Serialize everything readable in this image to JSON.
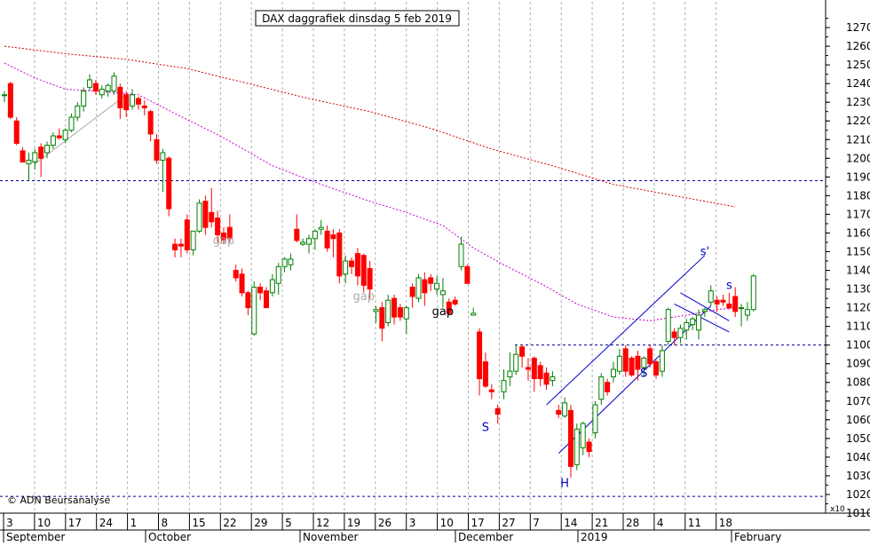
{
  "chart_data": {
    "type": "candlestick",
    "title": "DAX daggrafiek dinsdag 5 feb 2019",
    "copyright": "© ADN Beursanalyse",
    "ylim": [
      1010,
      1280
    ],
    "y_ticks": [
      1010,
      1020,
      1030,
      1040,
      1050,
      1060,
      1070,
      1080,
      1090,
      1100,
      1110,
      1120,
      1130,
      1140,
      1150,
      1160,
      1170,
      1180,
      1190,
      1200,
      1210,
      1220,
      1230,
      1240,
      1250,
      1260,
      1270
    ],
    "y_scale_label": "x10",
    "grid": true,
    "x_tick_labels": [
      "3",
      "10",
      "17",
      "24",
      "1",
      "8",
      "15",
      "22",
      "29",
      "5",
      "12",
      "19",
      "26",
      "3",
      "10",
      "17",
      "27",
      "7",
      "14",
      "21",
      "28",
      "4",
      "11",
      "18"
    ],
    "month_labels": [
      "September",
      "October",
      "November",
      "December",
      "2019",
      "February"
    ],
    "horizontal_lines": [
      1188,
      1100,
      1019
    ],
    "annotations": [
      {
        "text": "gap",
        "color": "#aaaaaa",
        "x_day": 36,
        "y": 1154
      },
      {
        "text": "gap",
        "color": "#aaaaaa",
        "x_day": 59,
        "y": 1124
      },
      {
        "text": "gap",
        "color": "#000000",
        "x_day": 72,
        "y": 1116
      },
      {
        "text": "S",
        "color": "#0000cc",
        "x_day": 79,
        "y": 1054
      },
      {
        "text": "H",
        "color": "#0000cc",
        "x_day": 92,
        "y": 1024
      },
      {
        "text": "S",
        "color": "#0000cc",
        "x_day": 105,
        "y": 1083
      },
      {
        "text": "s'",
        "color": "#0000cc",
        "x_day": 115,
        "y": 1148
      },
      {
        "text": "s",
        "color": "#0000cc",
        "x_day": 119,
        "y": 1130
      }
    ],
    "ma_slow": [
      [
        0,
        1260
      ],
      [
        10,
        1256
      ],
      [
        20,
        1253
      ],
      [
        30,
        1248
      ],
      [
        40,
        1240
      ],
      [
        50,
        1232
      ],
      [
        60,
        1225
      ],
      [
        70,
        1216
      ],
      [
        80,
        1205
      ],
      [
        90,
        1196
      ],
      [
        100,
        1186
      ],
      [
        110,
        1180
      ],
      [
        120,
        1174
      ]
    ],
    "ma_fast": [
      [
        0,
        1251
      ],
      [
        5,
        1243
      ],
      [
        10,
        1237
      ],
      [
        15,
        1236
      ],
      [
        22,
        1234
      ],
      [
        28,
        1224
      ],
      [
        36,
        1211
      ],
      [
        44,
        1196
      ],
      [
        52,
        1186
      ],
      [
        60,
        1177
      ],
      [
        66,
        1171
      ],
      [
        72,
        1164
      ],
      [
        77,
        1152
      ],
      [
        82,
        1143
      ],
      [
        88,
        1133
      ],
      [
        94,
        1122
      ],
      [
        100,
        1115
      ],
      [
        106,
        1113
      ],
      [
        112,
        1116
      ],
      [
        117,
        1119
      ],
      [
        120,
        1120
      ]
    ],
    "channel_lines": [
      [
        89,
        1068,
        115,
        1148
      ],
      [
        91,
        1042,
        116,
        1121
      ],
      [
        111,
        1128,
        119,
        1113
      ],
      [
        110,
        1122,
        119,
        1107
      ],
      [
        5,
        1197,
        20,
        1234
      ]
    ],
    "candles": [
      {
        "o": 1234,
        "h": 1236,
        "l": 1230,
        "c": 1234
      },
      {
        "o": 1240,
        "h": 1241,
        "l": 1221,
        "c": 1222
      },
      {
        "o": 1220,
        "h": 1222,
        "l": 1207,
        "c": 1208
      },
      {
        "o": 1204,
        "h": 1206,
        "l": 1198,
        "c": 1198
      },
      {
        "o": 1197,
        "h": 1203,
        "l": 1188,
        "c": 1199
      },
      {
        "o": 1198,
        "h": 1205,
        "l": 1194,
        "c": 1203
      },
      {
        "o": 1206,
        "h": 1208,
        "l": 1190,
        "c": 1200
      },
      {
        "o": 1203,
        "h": 1209,
        "l": 1200,
        "c": 1207
      },
      {
        "o": 1207,
        "h": 1214,
        "l": 1205,
        "c": 1212
      },
      {
        "o": 1212,
        "h": 1216,
        "l": 1210,
        "c": 1211
      },
      {
        "o": 1210,
        "h": 1216,
        "l": 1208,
        "c": 1215
      },
      {
        "o": 1215,
        "h": 1224,
        "l": 1214,
        "c": 1222
      },
      {
        "o": 1222,
        "h": 1230,
        "l": 1220,
        "c": 1228
      },
      {
        "o": 1228,
        "h": 1238,
        "l": 1225,
        "c": 1236
      },
      {
        "o": 1238,
        "h": 1245,
        "l": 1236,
        "c": 1242
      },
      {
        "o": 1240,
        "h": 1242,
        "l": 1234,
        "c": 1236
      },
      {
        "o": 1234,
        "h": 1239,
        "l": 1232,
        "c": 1237
      },
      {
        "o": 1236,
        "h": 1240,
        "l": 1233,
        "c": 1239
      },
      {
        "o": 1236,
        "h": 1246,
        "l": 1234,
        "c": 1244
      },
      {
        "o": 1238,
        "h": 1240,
        "l": 1221,
        "c": 1227
      },
      {
        "o": 1234,
        "h": 1236,
        "l": 1222,
        "c": 1226
      },
      {
        "o": 1228,
        "h": 1237,
        "l": 1226,
        "c": 1234
      },
      {
        "o": 1232,
        "h": 1233,
        "l": 1226,
        "c": 1229
      },
      {
        "o": 1228,
        "h": 1231,
        "l": 1223,
        "c": 1227
      },
      {
        "o": 1225,
        "h": 1226,
        "l": 1209,
        "c": 1213
      },
      {
        "o": 1210,
        "h": 1213,
        "l": 1197,
        "c": 1199
      },
      {
        "o": 1199,
        "h": 1205,
        "l": 1182,
        "c": 1203
      },
      {
        "o": 1200,
        "h": 1201,
        "l": 1169,
        "c": 1173
      },
      {
        "o": 1154,
        "h": 1157,
        "l": 1147,
        "c": 1151
      },
      {
        "o": 1154,
        "h": 1157,
        "l": 1147,
        "c": 1153
      },
      {
        "o": 1167,
        "h": 1170,
        "l": 1149,
        "c": 1151
      },
      {
        "o": 1151,
        "h": 1161,
        "l": 1148,
        "c": 1161
      },
      {
        "o": 1161,
        "h": 1178,
        "l": 1160,
        "c": 1176
      },
      {
        "o": 1177,
        "h": 1180,
        "l": 1159,
        "c": 1163
      },
      {
        "o": 1171,
        "h": 1184,
        "l": 1163,
        "c": 1166
      },
      {
        "o": 1168,
        "h": 1172,
        "l": 1155,
        "c": 1159
      },
      {
        "o": 1160,
        "h": 1163,
        "l": 1154,
        "c": 1156
      },
      {
        "o": 1163,
        "h": 1170,
        "l": 1155,
        "c": 1157
      },
      {
        "o": 1140,
        "h": 1143,
        "l": 1134,
        "c": 1136
      },
      {
        "o": 1138,
        "h": 1141,
        "l": 1126,
        "c": 1128
      },
      {
        "o": 1128,
        "h": 1129,
        "l": 1116,
        "c": 1120
      },
      {
        "o": 1106,
        "h": 1134,
        "l": 1105,
        "c": 1131
      },
      {
        "o": 1131,
        "h": 1133,
        "l": 1124,
        "c": 1128
      },
      {
        "o": 1129,
        "h": 1131,
        "l": 1120,
        "c": 1120
      },
      {
        "o": 1128,
        "h": 1138,
        "l": 1126,
        "c": 1135
      },
      {
        "o": 1133,
        "h": 1144,
        "l": 1127,
        "c": 1142
      },
      {
        "o": 1142,
        "h": 1147,
        "l": 1139,
        "c": 1146
      },
      {
        "o": 1143,
        "h": 1149,
        "l": 1140,
        "c": 1146
      },
      {
        "o": 1162,
        "h": 1170,
        "l": 1155,
        "c": 1156
      },
      {
        "o": 1154,
        "h": 1157,
        "l": 1153,
        "c": 1155
      },
      {
        "o": 1154,
        "h": 1159,
        "l": 1149,
        "c": 1157
      },
      {
        "o": 1157,
        "h": 1162,
        "l": 1151,
        "c": 1161
      },
      {
        "o": 1162,
        "h": 1167,
        "l": 1159,
        "c": 1163
      },
      {
        "o": 1161,
        "h": 1164,
        "l": 1150,
        "c": 1152
      },
      {
        "o": 1159,
        "h": 1162,
        "l": 1147,
        "c": 1157
      },
      {
        "o": 1160,
        "h": 1162,
        "l": 1133,
        "c": 1137
      },
      {
        "o": 1138,
        "h": 1148,
        "l": 1133,
        "c": 1145
      },
      {
        "o": 1145,
        "h": 1147,
        "l": 1138,
        "c": 1142
      },
      {
        "o": 1149,
        "h": 1152,
        "l": 1132,
        "c": 1137
      },
      {
        "o": 1148,
        "h": 1149,
        "l": 1128,
        "c": 1132
      },
      {
        "o": 1141,
        "h": 1145,
        "l": 1125,
        "c": 1130
      },
      {
        "o": 1118,
        "h": 1121,
        "l": 1112,
        "c": 1119
      },
      {
        "o": 1120,
        "h": 1123,
        "l": 1102,
        "c": 1109
      },
      {
        "o": 1112,
        "h": 1127,
        "l": 1110,
        "c": 1124
      },
      {
        "o": 1125,
        "h": 1127,
        "l": 1111,
        "c": 1115
      },
      {
        "o": 1120,
        "h": 1122,
        "l": 1113,
        "c": 1115
      },
      {
        "o": 1114,
        "h": 1121,
        "l": 1106,
        "c": 1120
      },
      {
        "o": 1131,
        "h": 1133,
        "l": 1120,
        "c": 1126
      },
      {
        "o": 1125,
        "h": 1138,
        "l": 1123,
        "c": 1136
      },
      {
        "o": 1135,
        "h": 1139,
        "l": 1121,
        "c": 1128
      },
      {
        "o": 1136,
        "h": 1138,
        "l": 1129,
        "c": 1133
      },
      {
        "o": 1130,
        "h": 1137,
        "l": 1127,
        "c": 1133
      },
      {
        "o": 1127,
        "h": 1136,
        "l": 1120,
        "c": 1129
      },
      {
        "o": 1123,
        "h": 1125,
        "l": 1116,
        "c": 1117
      },
      {
        "o": 1124,
        "h": 1126,
        "l": 1121,
        "c": 1122
      },
      {
        "o": 1142,
        "h": 1158,
        "l": 1140,
        "c": 1154
      },
      {
        "o": 1142,
        "h": 1143,
        "l": 1133,
        "c": 1133
      },
      {
        "o": 1116,
        "h": 1120,
        "l": 1116,
        "c": 1117
      },
      {
        "o": 1107,
        "h": 1109,
        "l": 1073,
        "c": 1082
      },
      {
        "o": 1091,
        "h": 1096,
        "l": 1077,
        "c": 1078
      },
      {
        "o": 1076,
        "h": 1079,
        "l": 1071,
        "c": 1075
      },
      {
        "o": 1066,
        "h": 1068,
        "l": 1058,
        "c": 1063
      },
      {
        "o": 1075,
        "h": 1087,
        "l": 1071,
        "c": 1081
      },
      {
        "o": 1083,
        "h": 1096,
        "l": 1078,
        "c": 1086
      },
      {
        "o": 1086,
        "h": 1100,
        "l": 1084,
        "c": 1095
      },
      {
        "o": 1099,
        "h": 1100,
        "l": 1088,
        "c": 1094
      },
      {
        "o": 1088,
        "h": 1093,
        "l": 1081,
        "c": 1087
      },
      {
        "o": 1093,
        "h": 1094,
        "l": 1075,
        "c": 1082
      },
      {
        "o": 1089,
        "h": 1091,
        "l": 1078,
        "c": 1082
      },
      {
        "o": 1085,
        "h": 1088,
        "l": 1076,
        "c": 1079
      },
      {
        "o": 1081,
        "h": 1086,
        "l": 1078,
        "c": 1083
      },
      {
        "o": 1065,
        "h": 1068,
        "l": 1061,
        "c": 1063
      },
      {
        "o": 1062,
        "h": 1072,
        "l": 1061,
        "c": 1069
      },
      {
        "o": 1065,
        "h": 1068,
        "l": 1029,
        "c": 1035
      },
      {
        "o": 1036,
        "h": 1058,
        "l": 1033,
        "c": 1055
      },
      {
        "o": 1045,
        "h": 1059,
        "l": 1041,
        "c": 1058
      },
      {
        "o": 1048,
        "h": 1050,
        "l": 1040,
        "c": 1043
      },
      {
        "o": 1053,
        "h": 1070,
        "l": 1050,
        "c": 1068
      },
      {
        "o": 1071,
        "h": 1085,
        "l": 1068,
        "c": 1083
      },
      {
        "o": 1080,
        "h": 1082,
        "l": 1073,
        "c": 1075
      },
      {
        "o": 1083,
        "h": 1091,
        "l": 1080,
        "c": 1087
      },
      {
        "o": 1086,
        "h": 1098,
        "l": 1084,
        "c": 1094
      },
      {
        "o": 1098,
        "h": 1100,
        "l": 1083,
        "c": 1086
      },
      {
        "o": 1093,
        "h": 1094,
        "l": 1083,
        "c": 1084
      },
      {
        "o": 1094,
        "h": 1097,
        "l": 1081,
        "c": 1087
      },
      {
        "o": 1088,
        "h": 1094,
        "l": 1083,
        "c": 1093
      },
      {
        "o": 1098,
        "h": 1100,
        "l": 1088,
        "c": 1090
      },
      {
        "o": 1091,
        "h": 1092,
        "l": 1082,
        "c": 1084
      },
      {
        "o": 1086,
        "h": 1100,
        "l": 1083,
        "c": 1097
      },
      {
        "o": 1102,
        "h": 1120,
        "l": 1100,
        "c": 1119
      },
      {
        "o": 1107,
        "h": 1109,
        "l": 1100,
        "c": 1104
      },
      {
        "o": 1104,
        "h": 1111,
        "l": 1101,
        "c": 1109
      },
      {
        "o": 1108,
        "h": 1114,
        "l": 1103,
        "c": 1112
      },
      {
        "o": 1111,
        "h": 1115,
        "l": 1108,
        "c": 1114
      },
      {
        "o": 1108,
        "h": 1119,
        "l": 1103,
        "c": 1116
      },
      {
        "o": 1118,
        "h": 1120,
        "l": 1115,
        "c": 1119
      },
      {
        "o": 1123,
        "h": 1132,
        "l": 1121,
        "c": 1129
      },
      {
        "o": 1124,
        "h": 1126,
        "l": 1118,
        "c": 1122
      },
      {
        "o": 1124,
        "h": 1127,
        "l": 1121,
        "c": 1123
      },
      {
        "o": 1122,
        "h": 1128,
        "l": 1119,
        "c": 1120
      },
      {
        "o": 1126,
        "h": 1131,
        "l": 1115,
        "c": 1118
      },
      {
        "o": 1120,
        "h": 1122,
        "l": 1110,
        "c": 1120
      },
      {
        "o": 1116,
        "h": 1123,
        "l": 1113,
        "c": 1119
      },
      {
        "o": 1119,
        "h": 1138,
        "l": 1118,
        "c": 1137
      }
    ]
  },
  "colors": {
    "up": "#008000",
    "down": "#ff0000",
    "ma_slow": "#cc0000",
    "ma_fast": "#cc00cc",
    "lines": "#0000cc",
    "hline": "#000099",
    "grid": "#b0b0b0"
  }
}
